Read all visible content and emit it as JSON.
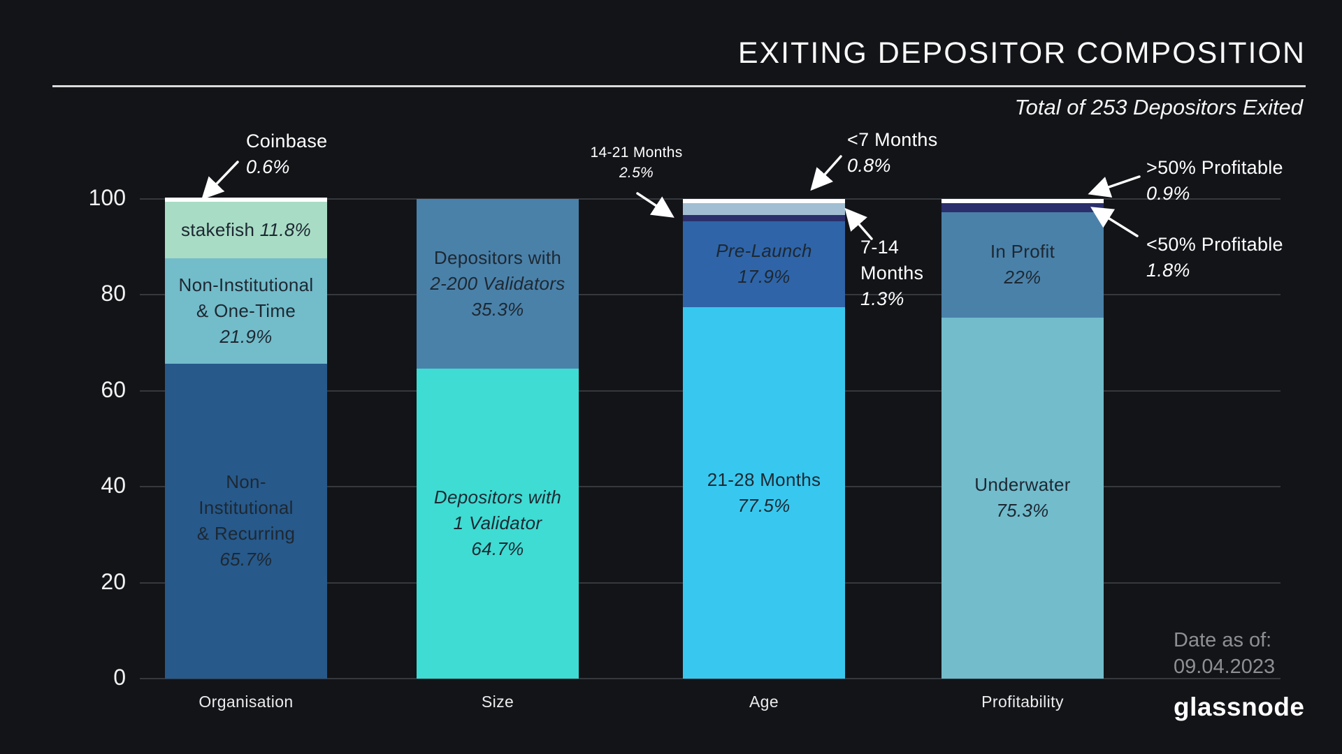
{
  "title": "EXITING DEPOSITOR COMPOSITION",
  "subtitle": "Total of 253 Depositors Exited",
  "footer": {
    "date_label": "Date as of:",
    "date_value": "09.04.2023",
    "brand": "glassnode"
  },
  "colors": {
    "background": "#131418",
    "grid": "#35383d",
    "axis_text": "#f2f2f2",
    "segment_text": "#1d2832",
    "annotation_text": "#ffffff",
    "muted_text": "#8e8f93"
  },
  "chart_data": {
    "type": "bar",
    "stacked": true,
    "unit": "%",
    "ylim": [
      0,
      100
    ],
    "yticks": [
      0,
      20,
      40,
      60,
      80,
      100
    ],
    "grid": true,
    "legend": "none",
    "categories": [
      "Organisation",
      "Size",
      "Age",
      "Profitability"
    ],
    "bars": [
      {
        "category": "Organisation",
        "segments": [
          {
            "name": "Non-Institutional & Recurring",
            "value": 65.7,
            "color": "#27598b",
            "lines": [
              [
                {
                  "t": "Non-",
                  "i": false
                }
              ],
              [
                {
                  "t": "Institutional",
                  "i": false
                }
              ],
              [
                {
                  "t": "& Recurring",
                  "i": false
                }
              ],
              [
                {
                  "t": "65.7%",
                  "i": true
                }
              ]
            ]
          },
          {
            "name": "Non-Institutional & One-Time",
            "value": 21.9,
            "color": "#73bcca",
            "lines": [
              [
                {
                  "t": "Non-Institutional",
                  "i": false
                }
              ],
              [
                {
                  "t": "& One-Time",
                  "i": false
                }
              ],
              [
                {
                  "t": "21.9%",
                  "i": true
                }
              ]
            ]
          },
          {
            "name": "stakefish",
            "value": 11.8,
            "color": "#a9dcc5",
            "lines": [
              [
                {
                  "t": "stakefish ",
                  "i": false
                },
                {
                  "t": "11.8%",
                  "i": true
                }
              ]
            ]
          },
          {
            "name": "Coinbase",
            "value": 0.6,
            "color": "#ffffff"
          }
        ]
      },
      {
        "category": "Size",
        "segments": [
          {
            "name": "Depositors with 1 Validator",
            "value": 64.7,
            "color": "#3edcd3",
            "lines": [
              [
                {
                  "t": "Depositors with",
                  "i": true
                }
              ],
              [
                {
                  "t": "1 Validator",
                  "i": true
                }
              ],
              [
                {
                  "t": "64.7%",
                  "i": true
                }
              ]
            ]
          },
          {
            "name": "Depositors with 2-200 Validators",
            "value": 35.3,
            "color": "#4a81a9",
            "lines": [
              [
                {
                  "t": "Depositors with",
                  "i": false
                }
              ],
              [
                {
                  "t": "2-200 Validators",
                  "i": true
                }
              ],
              [
                {
                  "t": "35.3%",
                  "i": true
                }
              ]
            ]
          }
        ]
      },
      {
        "category": "Age",
        "segments": [
          {
            "name": "21-28 Months",
            "value": 77.5,
            "color": "#38c8ef",
            "lines": [
              [
                {
                  "t": "21-28 Months",
                  "i": false
                }
              ],
              [
                {
                  "t": "77.5%",
                  "i": true
                }
              ]
            ]
          },
          {
            "name": "Pre-Launch",
            "value": 17.9,
            "color": "#2f64a8",
            "lines": [
              [
                {
                  "t": "Pre-Launch",
                  "i": true
                }
              ],
              [
                {
                  "t": "17.9%",
                  "i": true
                }
              ]
            ]
          },
          {
            "name": "7-14 Months",
            "value": 1.3,
            "color": "#2b2f6b"
          },
          {
            "name": "14-21 Months",
            "value": 2.5,
            "color": "#a2bed2"
          },
          {
            "name": "<7 Months",
            "value": 0.8,
            "color": "#ffffff"
          }
        ]
      },
      {
        "category": "Profitability",
        "segments": [
          {
            "name": "Underwater",
            "value": 75.3,
            "color": "#72bccc",
            "lines": [
              [
                {
                  "t": "Underwater",
                  "i": false
                }
              ],
              [
                {
                  "t": "75.3%",
                  "i": true
                }
              ]
            ]
          },
          {
            "name": "In Profit",
            "value": 22,
            "color": "#4a81a9",
            "lines": [
              [
                {
                  "t": "In Profit",
                  "i": false
                }
              ],
              [
                {
                  "t": "22%",
                  "i": true
                }
              ]
            ]
          },
          {
            "name": "<50% Profitable",
            "value": 1.8,
            "color": "#2b2f6b"
          },
          {
            "name": ">50% Profitable",
            "value": 0.9,
            "color": "#ffffff"
          }
        ]
      }
    ]
  },
  "annotations": {
    "coinbase": {
      "label": "Coinbase",
      "value": "0.6%"
    },
    "m14_21": {
      "label": "14-21 Months",
      "value": "2.5%"
    },
    "lt7": {
      "label": "<7 Months",
      "value": "0.8%"
    },
    "m7_14": {
      "label1": "7-14",
      "label2": "Months",
      "value": "1.3%"
    },
    "gt50": {
      "label": ">50% Profitable",
      "value": "0.9%"
    },
    "lt50": {
      "label": "<50% Profitable",
      "value": "1.8%"
    }
  }
}
